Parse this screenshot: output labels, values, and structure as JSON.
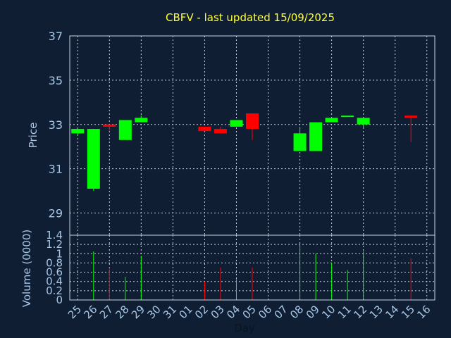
{
  "chart_data": {
    "type": "candlestick",
    "title": "CBFV - last updated 15/09/2025",
    "xlabel": "Day",
    "colors": {
      "background": "#0f1e33",
      "up": "#00ff00",
      "down": "#ff0000",
      "title": "#ffff33",
      "axis_text": "#a8c8e8"
    },
    "price_panel": {
      "ylabel": "Price",
      "ylim": [
        28,
        37
      ],
      "yticks": [
        29,
        31,
        33,
        35,
        37
      ],
      "grid": true
    },
    "volume_panel": {
      "ylabel": "Volume (0000)",
      "ylim": [
        0,
        1.4
      ],
      "yticks": [
        0,
        0.2,
        0.4,
        0.6,
        0.8,
        1,
        1.2,
        1.4
      ],
      "tick_labels": [
        "0",
        "0.2",
        "0.4",
        "0.6",
        "0.8",
        "1",
        "1.2",
        "1.4"
      ],
      "grid": true
    },
    "x_labels": [
      "25",
      "26",
      "27",
      "28",
      "29",
      "30",
      "31",
      "01",
      "02",
      "03",
      "04",
      "05",
      "06",
      "07",
      "08",
      "09",
      "10",
      "11",
      "12",
      "13",
      "14",
      "15",
      "16"
    ],
    "candles": [
      {
        "day": "25",
        "open": 32.6,
        "high": 32.8,
        "low": 32.5,
        "close": 32.8,
        "volume": 0
      },
      {
        "day": "26",
        "open": 30.1,
        "high": 32.8,
        "low": 30.0,
        "close": 32.8,
        "volume": 1.05
      },
      {
        "day": "27",
        "open": 33.0,
        "high": 33.0,
        "low": 32.7,
        "close": 32.9,
        "volume": 0.7
      },
      {
        "day": "28",
        "open": 32.3,
        "high": 33.2,
        "low": 32.3,
        "close": 33.2,
        "volume": 0.5
      },
      {
        "day": "29",
        "open": 33.1,
        "high": 33.4,
        "low": 33.1,
        "close": 33.3,
        "volume": 0.95
      },
      {
        "day": "02",
        "open": 32.9,
        "high": 32.9,
        "low": 32.7,
        "close": 32.7,
        "volume": 0.4
      },
      {
        "day": "03",
        "open": 32.8,
        "high": 32.9,
        "low": 32.6,
        "close": 32.6,
        "volume": 0.7
      },
      {
        "day": "04",
        "open": 32.9,
        "high": 33.2,
        "low": 32.9,
        "close": 33.2,
        "volume": 0.45
      },
      {
        "day": "05",
        "open": 33.5,
        "high": 33.5,
        "low": 32.3,
        "close": 32.8,
        "volume": 0.7
      },
      {
        "day": "08",
        "open": 31.8,
        "high": 32.9,
        "low": 31.8,
        "close": 32.6,
        "volume": 1.2
      },
      {
        "day": "09",
        "open": 31.8,
        "high": 33.1,
        "low": 31.8,
        "close": 33.1,
        "volume": 1.0
      },
      {
        "day": "10",
        "open": 33.1,
        "high": 33.3,
        "low": 33.1,
        "close": 33.3,
        "volume": 0.8
      },
      {
        "day": "11",
        "open": 33.4,
        "high": 33.4,
        "low": 33.4,
        "close": 33.4,
        "volume": 0.65
      },
      {
        "day": "12",
        "open": 33.0,
        "high": 33.3,
        "low": 32.8,
        "close": 33.3,
        "volume": 1.05
      },
      {
        "day": "15",
        "open": 33.4,
        "high": 33.4,
        "low": 32.2,
        "close": 33.3,
        "volume": 0.9
      }
    ]
  }
}
